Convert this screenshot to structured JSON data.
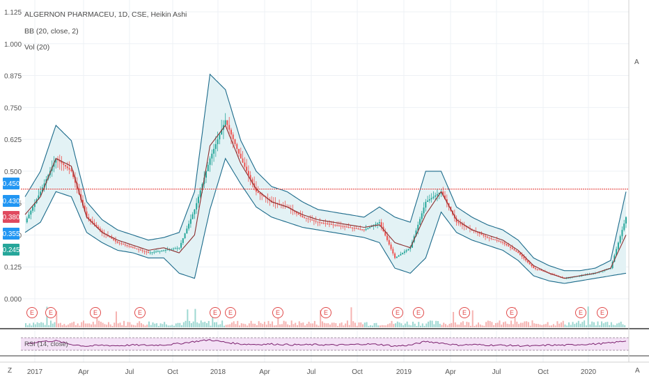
{
  "legend": {
    "line1": "ALGERNON PHARMACEU, 1D, CSE, Heikin Ashi",
    "line2": "BB (20, close, 2)",
    "line3": "Vol (20)"
  },
  "rsi_label": "RSI (14, close)",
  "corner_left": "Z",
  "corner_right": "A",
  "price_axis": [
    "1.125",
    "1.000",
    "0.875",
    "0.750",
    "0.625",
    "0.500",
    "0.375",
    "0.250",
    "0.125",
    "0.000"
  ],
  "price_tags": [
    {
      "label": "0.450",
      "value": 0.45,
      "color": "#2196f3"
    },
    {
      "label": "0.430",
      "value": 0.43,
      "color": "#2196f3"
    },
    {
      "label": "0.380",
      "value": 0.38,
      "color": "#e04a5f"
    },
    {
      "label": "0.355",
      "value": 0.355,
      "color": "#2196f3"
    },
    {
      "label": "0.245",
      "value": 0.245,
      "color": "#26a69a"
    }
  ],
  "horizontal_line_value": 0.43,
  "earnings_marker": "E",
  "time_axis": [
    "2017",
    "Apr",
    "Jul",
    "Oct",
    "2018",
    "Apr",
    "Jul",
    "Oct",
    "2019",
    "Apr",
    "Jul",
    "Oct",
    "2020"
  ],
  "colors": {
    "up": "#26a69a",
    "down": "#ef5350",
    "band": "#1b6a8a",
    "band_fill": "#e3f2f5",
    "ma": "#8b2d2d",
    "rsi": "#7b1f6e",
    "rsi_fill": "#f3e1f5",
    "hline": "#e53935"
  },
  "chart_data": {
    "type": "line",
    "title": "ALGERNON PHARMACEU, 1D, CSE, Heikin Ashi",
    "ylim": [
      0.0,
      1.125
    ],
    "x": [
      "2016-12",
      "2017-01",
      "2017-02",
      "2017-03",
      "2017-04",
      "2017-05",
      "2017-06",
      "2017-07",
      "2017-08",
      "2017-09",
      "2017-10",
      "2017-11",
      "2017-12",
      "2018-01",
      "2018-02",
      "2018-03",
      "2018-04",
      "2018-05",
      "2018-06",
      "2018-07",
      "2018-08",
      "2018-09",
      "2018-10",
      "2018-11",
      "2018-12",
      "2019-01",
      "2019-02",
      "2019-03",
      "2019-04",
      "2019-05",
      "2019-06",
      "2019-07",
      "2019-08",
      "2019-09",
      "2019-10",
      "2019-11",
      "2019-12",
      "2020-01",
      "2020-02",
      "2020-03"
    ],
    "series": [
      {
        "name": "price",
        "values": [
          0.3,
          0.42,
          0.55,
          0.5,
          0.32,
          0.26,
          0.22,
          0.2,
          0.18,
          0.19,
          0.2,
          0.35,
          0.55,
          0.7,
          0.55,
          0.42,
          0.38,
          0.36,
          0.32,
          0.3,
          0.29,
          0.28,
          0.27,
          0.3,
          0.16,
          0.2,
          0.38,
          0.42,
          0.3,
          0.27,
          0.24,
          0.22,
          0.18,
          0.12,
          0.1,
          0.08,
          0.09,
          0.1,
          0.12,
          0.32
        ]
      },
      {
        "name": "bb_upper",
        "values": [
          0.4,
          0.5,
          0.68,
          0.62,
          0.38,
          0.31,
          0.27,
          0.25,
          0.23,
          0.24,
          0.26,
          0.42,
          0.88,
          0.82,
          0.62,
          0.5,
          0.44,
          0.42,
          0.38,
          0.35,
          0.34,
          0.33,
          0.32,
          0.36,
          0.32,
          0.3,
          0.5,
          0.5,
          0.36,
          0.32,
          0.29,
          0.27,
          0.23,
          0.16,
          0.13,
          0.11,
          0.11,
          0.12,
          0.15,
          0.42
        ]
      },
      {
        "name": "bb_lower",
        "values": [
          0.26,
          0.3,
          0.42,
          0.4,
          0.26,
          0.22,
          0.19,
          0.18,
          0.16,
          0.16,
          0.1,
          0.08,
          0.35,
          0.55,
          0.45,
          0.36,
          0.32,
          0.3,
          0.28,
          0.27,
          0.26,
          0.25,
          0.24,
          0.22,
          0.12,
          0.1,
          0.16,
          0.34,
          0.26,
          0.23,
          0.21,
          0.19,
          0.15,
          0.09,
          0.07,
          0.06,
          0.07,
          0.08,
          0.09,
          0.1
        ]
      },
      {
        "name": "ma",
        "values": [
          0.33,
          0.4,
          0.55,
          0.52,
          0.32,
          0.26,
          0.23,
          0.21,
          0.19,
          0.2,
          0.18,
          0.25,
          0.6,
          0.68,
          0.53,
          0.43,
          0.38,
          0.36,
          0.33,
          0.31,
          0.3,
          0.29,
          0.28,
          0.29,
          0.22,
          0.2,
          0.33,
          0.42,
          0.31,
          0.27,
          0.25,
          0.23,
          0.19,
          0.13,
          0.1,
          0.08,
          0.09,
          0.1,
          0.12,
          0.25
        ]
      },
      {
        "name": "rsi",
        "values": [
          50,
          62,
          65,
          48,
          40,
          44,
          42,
          45,
          44,
          46,
          52,
          62,
          70,
          58,
          50,
          48,
          50,
          47,
          46,
          47,
          45,
          46,
          50,
          48,
          40,
          45,
          62,
          55,
          45,
          47,
          45,
          44,
          42,
          40,
          45,
          44,
          48,
          50,
          55,
          65
        ]
      }
    ]
  }
}
